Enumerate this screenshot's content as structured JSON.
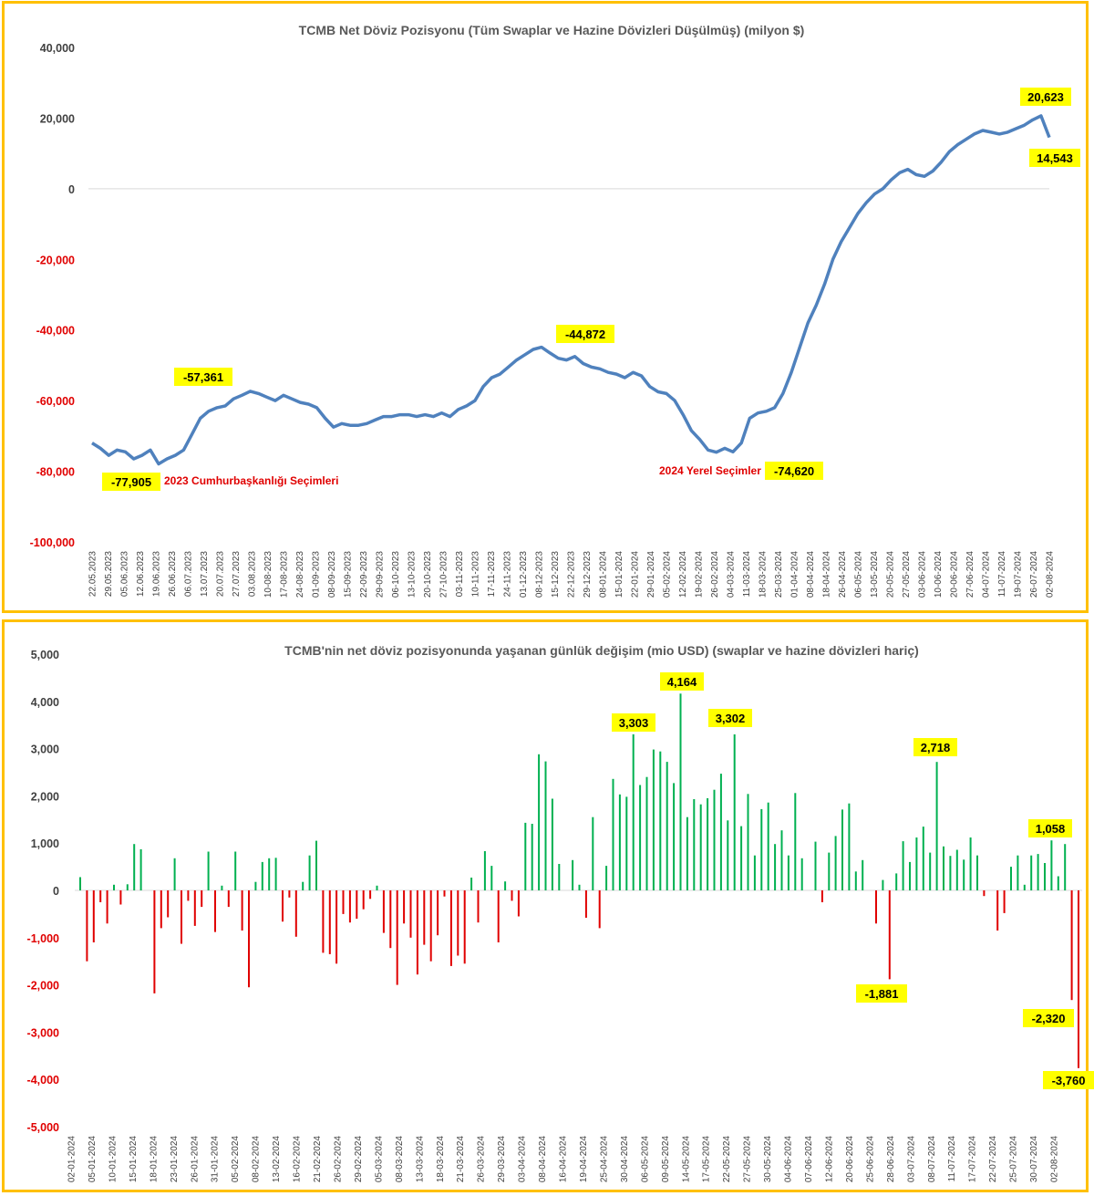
{
  "colors": {
    "border": "#FFC000",
    "line": "#4F81BD",
    "positive": "#00B050",
    "negative": "#E00000",
    "label_bg": "#FFFF00",
    "axis_pos": "#404040",
    "axis_neg": "#E00000"
  },
  "chart_data": [
    {
      "type": "line",
      "title": "TCMB Net Döviz Pozisyonu (Tüm Swaplar ve Hazine Dövizleri Düşülmüş) (milyon $)",
      "ylim": [
        -100000,
        40000
      ],
      "y_ticks": [
        40000,
        20000,
        0,
        -20000,
        -40000,
        -60000,
        -80000,
        -100000
      ],
      "y_tick_labels": [
        "40,000",
        "20,000",
        "0",
        "-20,000",
        "-40,000",
        "-60,000",
        "-80,000",
        "-100,000"
      ],
      "x_tick_labels": [
        "22.05.2023",
        "29.05.2023",
        "05.06.2023",
        "12.06.2023",
        "19.06.2023",
        "26.06.2023",
        "06.07.2023",
        "13.07.2023",
        "20.07.2023",
        "27.07.2023",
        "03.08.2023",
        "10-08-2023",
        "17-08-2023",
        "24-08-2023",
        "01-09-2023",
        "08-09-2023",
        "15-09-2023",
        "22-09-2023",
        "29-09-2023",
        "06-10-2023",
        "13-10-2023",
        "20-10-2023",
        "27-10-2023",
        "03-11-2023",
        "10-11-2023",
        "17-11-2023",
        "24-11-2023",
        "01-12-2023",
        "08-12-2023",
        "15-12-2023",
        "22-12-2023",
        "29-12-2023",
        "08-01-2024",
        "15-01-2024",
        "22-01-2024",
        "29-01-2024",
        "05-02-2024",
        "12-02-2024",
        "19-02-2024",
        "26-02-2024",
        "04-03-2024",
        "11-03-2024",
        "18-03-2024",
        "25-03-2024",
        "01-04-2024",
        "08-04-2024",
        "18-04-2024",
        "26-04-2024",
        "06-05-2024",
        "13-05-2024",
        "20-05-2024",
        "27-05-2024",
        "03-06-2024",
        "10-06-2024",
        "20-06-2024",
        "27-06-2024",
        "04-07-2024",
        "11-07-2024",
        "19-07-2024",
        "26-07-2024",
        "02-08-2024"
      ],
      "series": [
        {
          "values": [
            -72000,
            -73500,
            -75500,
            -74000,
            -74500,
            -76500,
            -75500,
            -74000,
            -77905,
            -76500,
            -75500,
            -74000,
            -69500,
            -65000,
            -63000,
            -62000,
            -61500,
            -59500,
            -58500,
            -57361,
            -58000,
            -59000,
            -60000,
            -58500,
            -59500,
            -60500,
            -61000,
            -62000,
            -65000,
            -67500,
            -66500,
            -67000,
            -67000,
            -66500,
            -65500,
            -64500,
            -64500,
            -64000,
            -64000,
            -64500,
            -64000,
            -64500,
            -63500,
            -64500,
            -62500,
            -61500,
            -60000,
            -56000,
            -53500,
            -52500,
            -50500,
            -48500,
            -47000,
            -45500,
            -44872,
            -46500,
            -48000,
            -48500,
            -47500,
            -49500,
            -50500,
            -51000,
            -52000,
            -52500,
            -53500,
            -52000,
            -53000,
            -56000,
            -57500,
            -58000,
            -60000,
            -64000,
            -68500,
            -71000,
            -74000,
            -74620,
            -73500,
            -74500,
            -72000,
            -65000,
            -63500,
            -63000,
            -62000,
            -58000,
            -52000,
            -45000,
            -38000,
            -33000,
            -27000,
            -20000,
            -15000,
            -11000,
            -7000,
            -4000,
            -1500,
            0,
            2500,
            4500,
            5500,
            4000,
            3500,
            5000,
            7500,
            10500,
            12500,
            14000,
            15500,
            16500,
            16000,
            15500,
            16000,
            17000,
            18000,
            19500,
            20623,
            14543
          ]
        }
      ],
      "annotations": [
        {
          "text": "-77,905",
          "value": -77905
        },
        {
          "text": "-57,361",
          "value": -57361
        },
        {
          "text": "-44,872",
          "value": -44872
        },
        {
          "text": "-74,620",
          "value": -74620
        },
        {
          "text": "20,623",
          "value": 20623
        },
        {
          "text": "14,543",
          "value": 14543
        }
      ],
      "notes": [
        "2023 Cumhurbaşkanlığı Seçimleri",
        "2024 Yerel Seçimler"
      ]
    },
    {
      "type": "bar",
      "title": "TCMB'nin net döviz pozisyonunda yaşanan günlük değişim (mio USD) (swaplar ve hazine dövizleri hariç)",
      "ylim": [
        -5000,
        5000
      ],
      "y_ticks": [
        5000,
        4000,
        3000,
        2000,
        1000,
        0,
        -1000,
        -2000,
        -3000,
        -4000,
        -5000
      ],
      "y_tick_labels": [
        "5,000",
        "4,000",
        "3,000",
        "2,000",
        "1,000",
        "0",
        "-1,000",
        "-2,000",
        "-3,000",
        "-4,000",
        "-5,000"
      ],
      "x_tick_labels": [
        "02-01-2024",
        "05-01-2024",
        "10-01-2024",
        "15-01-2024",
        "18-01-2024",
        "23-01-2024",
        "26-01-2024",
        "31-01-2024",
        "05-02-2024",
        "08-02-2024",
        "13-02-2024",
        "16-02-2024",
        "21-02-2024",
        "26-02-2024",
        "29-02-2024",
        "05-03-2024",
        "08-03-2024",
        "13-03-2024",
        "18-03-2024",
        "21-03-2024",
        "26-03-2024",
        "29-03-2024",
        "03-04-2024",
        "08-04-2024",
        "16-04-2024",
        "19-04-2024",
        "25-04-2024",
        "30-04-2024",
        "06-05-2024",
        "09-05-2024",
        "14-05-2024",
        "17-05-2024",
        "22-05-2024",
        "27-05-2024",
        "30-05-2024",
        "04-06-2024",
        "07-06-2024",
        "12-06-2024",
        "20-06-2024",
        "25-06-2024",
        "28-06-2024",
        "03-07-2024",
        "08-07-2024",
        "11-07-2024",
        "17-07-2024",
        "22-07-2024",
        "25-07-2024",
        "30-07-2024",
        "02-08-2024"
      ],
      "values": [
        280,
        -1500,
        -1100,
        -250,
        -700,
        120,
        -300,
        130,
        980,
        870,
        0,
        -2180,
        -800,
        -570,
        680,
        -1130,
        -220,
        -750,
        -350,
        820,
        -880,
        100,
        -350,
        820,
        -850,
        -2050,
        180,
        600,
        680,
        690,
        -660,
        -150,
        -980,
        180,
        740,
        1050,
        -1320,
        -1350,
        -1550,
        -500,
        -680,
        -600,
        -400,
        -180,
        100,
        -900,
        -1220,
        -2000,
        -700,
        -1000,
        -1780,
        -1150,
        -1500,
        -950,
        -130,
        -1600,
        -1380,
        -1550,
        270,
        -680,
        830,
        520,
        -1100,
        190,
        -220,
        -550,
        1430,
        1410,
        2880,
        2730,
        1940,
        560,
        0,
        640,
        120,
        -580,
        1550,
        -800,
        520,
        2360,
        2030,
        1980,
        3303,
        2230,
        2400,
        2980,
        2940,
        2720,
        2270,
        4164,
        1550,
        1930,
        1820,
        1950,
        2130,
        2470,
        1480,
        3302,
        1360,
        2040,
        740,
        1720,
        1860,
        980,
        1270,
        740,
        2060,
        680,
        0,
        1030,
        -250,
        800,
        1150,
        1710,
        1840,
        400,
        640,
        0,
        -700,
        220,
        -1881,
        360,
        1040,
        600,
        1120,
        1350,
        800,
        2718,
        930,
        730,
        860,
        650,
        1120,
        740,
        -120,
        0,
        -850,
        -480,
        500,
        740,
        120,
        740,
        770,
        580,
        1058,
        300,
        980,
        -2320,
        -3760
      ],
      "annotations": [
        {
          "text": "3,303",
          "value": 3303
        },
        {
          "text": "4,164",
          "value": 4164
        },
        {
          "text": "3,302",
          "value": 3302
        },
        {
          "text": "2,718",
          "value": 2718
        },
        {
          "text": "1,058",
          "value": 1058
        },
        {
          "text": "-1,881",
          "value": -1881
        },
        {
          "text": "-2,320",
          "value": -2320
        },
        {
          "text": "-3,760",
          "value": -3760
        }
      ]
    }
  ]
}
